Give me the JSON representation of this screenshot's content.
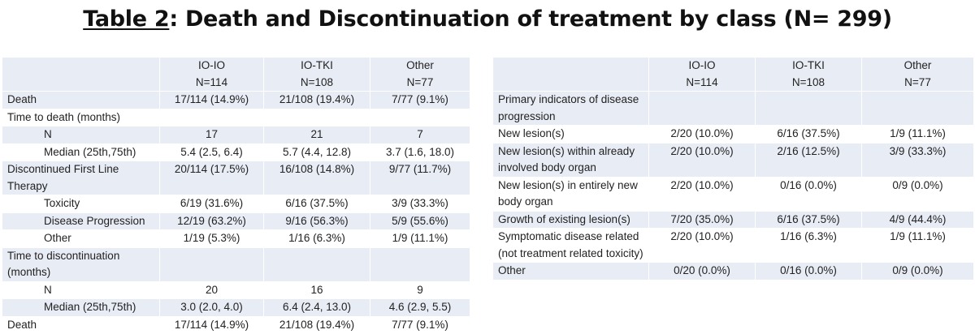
{
  "title": {
    "label": "Table 2",
    "rest": ":  Death and Discontinuation of treatment by class (N= 299)"
  },
  "columns": [
    {
      "name": "IO-IO",
      "n": "N=114"
    },
    {
      "name": "IO-TKI",
      "n": "N=108"
    },
    {
      "name": "Other",
      "n": "N=77"
    }
  ],
  "left_rows": [
    {
      "label": "Death",
      "indent": false,
      "band": "a",
      "cells": [
        "17/114 (14.9%)",
        "21/108 (19.4%)",
        "7/77 (9.1%)"
      ]
    },
    {
      "label": "Time to death (months)",
      "indent": false,
      "band": "b",
      "cells": [
        "",
        "",
        ""
      ]
    },
    {
      "label": "N",
      "indent": true,
      "band": "a",
      "cells": [
        "17",
        "21",
        "7"
      ]
    },
    {
      "label": "Median (25th,75th)",
      "indent": true,
      "band": "b",
      "cells": [
        "5.4 (2.5, 6.4)",
        "5.7 (4.4, 12.8)",
        "3.7 (1.6, 18.0)"
      ]
    },
    {
      "label": "Discontinued First Line Therapy",
      "indent": false,
      "band": "a",
      "cells": [
        "20/114 (17.5%)",
        "16/108 (14.8%)",
        "9/77 (11.7%)"
      ]
    },
    {
      "label": "Toxicity",
      "indent": true,
      "band": "b",
      "cells": [
        "6/19 (31.6%)",
        "6/16 (37.5%)",
        "3/9 (33.3%)"
      ]
    },
    {
      "label": "Disease Progression",
      "indent": true,
      "band": "a",
      "cells": [
        "12/19 (63.2%)",
        "9/16 (56.3%)",
        "5/9 (55.6%)"
      ]
    },
    {
      "label": "Other",
      "indent": true,
      "band": "b",
      "cells": [
        "1/19 (5.3%)",
        "1/16 (6.3%)",
        "1/9 (11.1%)"
      ]
    },
    {
      "label": "Time to discontinuation (months)",
      "indent": false,
      "band": "a",
      "cells": [
        "",
        "",
        ""
      ]
    },
    {
      "label": "N",
      "indent": true,
      "band": "b",
      "cells": [
        "20",
        "16",
        "9"
      ]
    },
    {
      "label": "Median (25th,75th)",
      "indent": true,
      "band": "a",
      "cells": [
        "3.0 (2.0, 4.0)",
        "6.4 (2.4, 13.0)",
        "4.6 (2.9, 5.5)"
      ]
    },
    {
      "label": "Death",
      "indent": false,
      "band": "b",
      "cells": [
        "17/114 (14.9%)",
        "21/108 (19.4%)",
        "7/77 (9.1%)"
      ]
    }
  ],
  "right_rows": [
    {
      "label": "Primary indicators of disease progression",
      "band": "a",
      "cells": [
        "",
        "",
        ""
      ]
    },
    {
      "label": "New lesion(s)",
      "band": "b",
      "cells": [
        "2/20 (10.0%)",
        "6/16 (37.5%)",
        "1/9 (11.1%)"
      ]
    },
    {
      "label": "New lesion(s) within already involved body organ",
      "band": "a",
      "cells": [
        "2/20 (10.0%)",
        "2/16 (12.5%)",
        "3/9 (33.3%)"
      ]
    },
    {
      "label": "New lesion(s) in entirely new body organ",
      "band": "b",
      "cells": [
        "2/20 (10.0%)",
        "0/16 (0.0%)",
        "0/9 (0.0%)"
      ]
    },
    {
      "label": "Growth of existing lesion(s)",
      "band": "a",
      "cells": [
        "7/20 (35.0%)",
        "6/16 (37.5%)",
        "4/9 (44.4%)"
      ]
    },
    {
      "label": "Symptomatic disease related (not treatment related toxicity)",
      "band": "b",
      "cells": [
        "2/20 (10.0%)",
        "1/16 (6.3%)",
        "1/9 (11.1%)"
      ]
    },
    {
      "label": "Other",
      "band": "a",
      "cells": [
        "0/20 (0.0%)",
        "0/16 (0.0%)",
        "0/9 (0.0%)"
      ]
    }
  ]
}
